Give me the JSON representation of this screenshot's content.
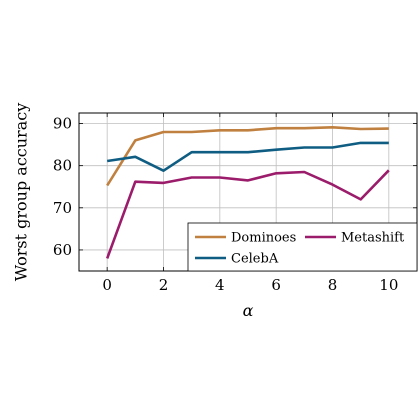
{
  "chart_data": {
    "type": "line",
    "xlabel": "α",
    "ylabel": "Worst group accuracy",
    "xlim": [
      -1,
      11
    ],
    "ylim": [
      55,
      92.5
    ],
    "xticks": [
      0,
      2,
      4,
      6,
      8,
      10
    ],
    "yticks": [
      60,
      70,
      80,
      90
    ],
    "grid": true,
    "legend_position": "bottom-right",
    "x": [
      0,
      1,
      2,
      3,
      4,
      5,
      6,
      7,
      8,
      9,
      10
    ],
    "series": [
      {
        "name": "Dominoes",
        "color": "#c0803f",
        "values": [
          75.3,
          86.0,
          88.0,
          88.0,
          88.4,
          88.4,
          88.9,
          88.9,
          89.1,
          88.7,
          88.8
        ]
      },
      {
        "name": "Metashift",
        "color": "#9b1c6b",
        "values": [
          58.0,
          76.2,
          75.9,
          77.2,
          77.2,
          76.5,
          78.2,
          78.5,
          75.5,
          72.0,
          78.9
        ]
      },
      {
        "name": "CelebA",
        "color": "#0f5d82",
        "values": [
          81.1,
          82.1,
          78.8,
          83.2,
          83.2,
          83.2,
          83.8,
          84.3,
          84.3,
          85.4,
          85.4
        ]
      }
    ]
  }
}
